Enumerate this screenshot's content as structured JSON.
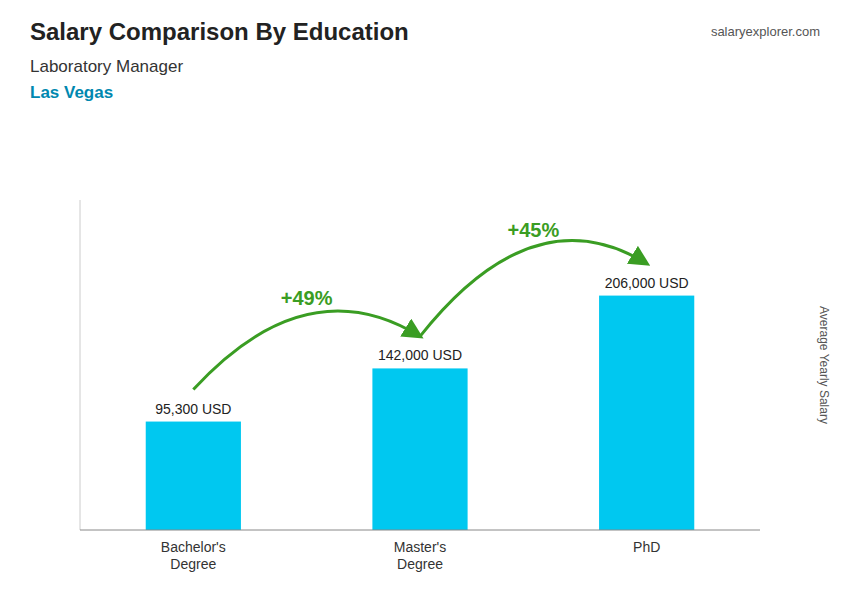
{
  "chart_data": {
    "type": "bar",
    "title": "Salary Comparison By Education",
    "subtitle": [
      "Laboratory Manager",
      "Las Vegas"
    ],
    "source": "salaryexplorer.com",
    "ylabel": "Average Yearly Salary",
    "categories": [
      "Bachelor's\nDegree",
      "Master's\nDegree",
      "PhD"
    ],
    "values": [
      95300,
      142000,
      206000
    ],
    "value_labels": [
      "95,300 USD",
      "142,000 USD",
      "206,000 USD"
    ],
    "data_labels": true,
    "annotations": [
      "+49%",
      "+45%"
    ],
    "color": "#00c8f0",
    "ylim": [
      0,
      290000
    ],
    "tick_labels": "x",
    "grid": false
  }
}
